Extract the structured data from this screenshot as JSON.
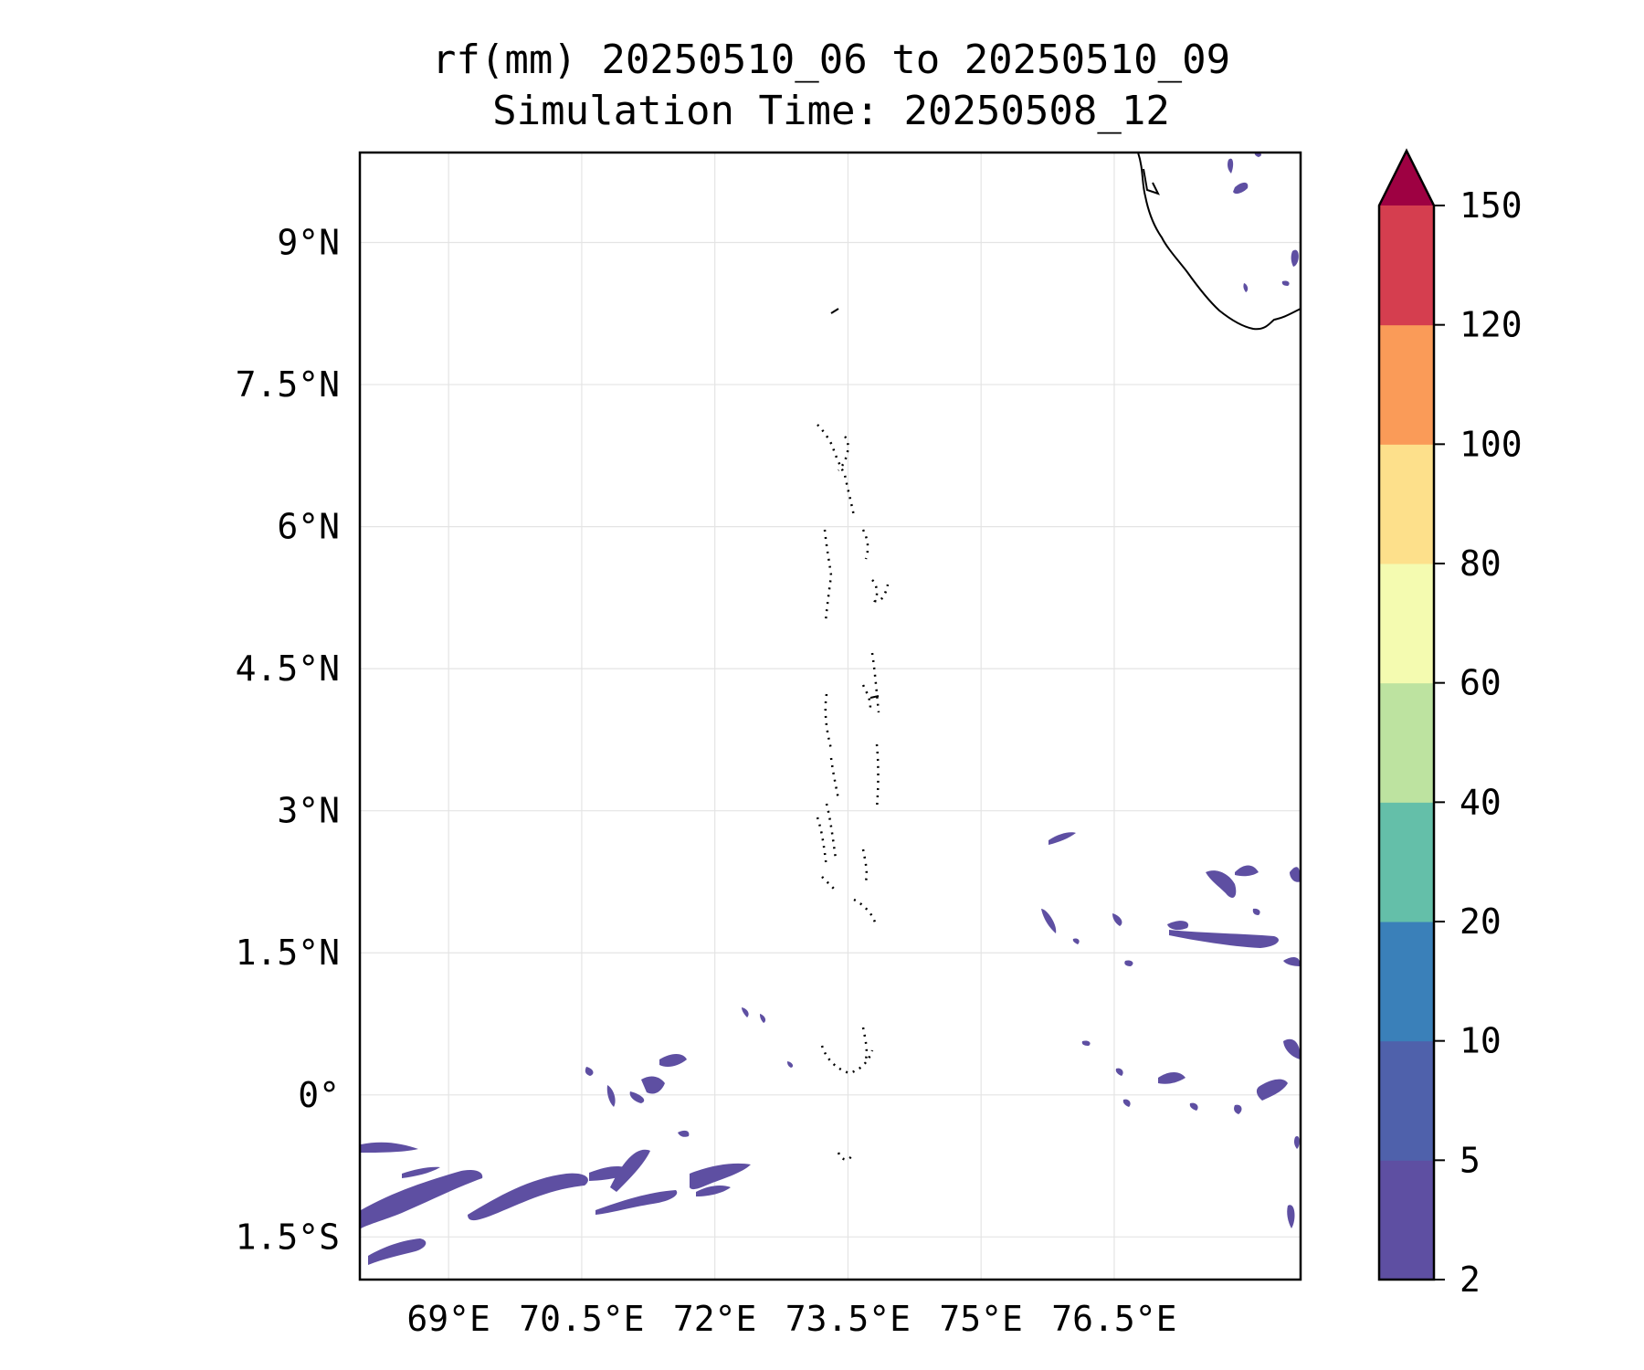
{
  "title": {
    "line1": "rf(mm) 20250510_06 to 20250510_09",
    "line2": "Simulation Time: 20250508_12"
  },
  "map": {
    "lon_range": [
      68,
      78.6
    ],
    "lat_range": [
      -1.95,
      9.95
    ],
    "lon_ticks": [
      {
        "value": 69,
        "label": "69°E"
      },
      {
        "value": 70.5,
        "label": "70.5°E"
      },
      {
        "value": 72,
        "label": "72°E"
      },
      {
        "value": 73.5,
        "label": "73.5°E"
      },
      {
        "value": 75,
        "label": "75°E"
      },
      {
        "value": 76.5,
        "label": "76.5°E"
      }
    ],
    "lat_ticks": [
      {
        "value": 9,
        "label": "9°N"
      },
      {
        "value": 7.5,
        "label": "7.5°N"
      },
      {
        "value": 6,
        "label": "6°N"
      },
      {
        "value": 4.5,
        "label": "4.5°N"
      },
      {
        "value": 3,
        "label": "3°N"
      },
      {
        "value": 1.5,
        "label": "1.5°N"
      },
      {
        "value": 0,
        "label": "0°"
      },
      {
        "value": -1.5,
        "label": "1.5°S"
      }
    ],
    "grid": true,
    "rain_color": "#5e4fa2"
  },
  "colorbar": {
    "levels": [
      2,
      5,
      10,
      20,
      40,
      60,
      80,
      100,
      120,
      150
    ],
    "labels": [
      "2",
      "5",
      "10",
      "20",
      "40",
      "60",
      "80",
      "100",
      "120",
      "150"
    ],
    "colors": [
      "#5e4fa2",
      "#4f61ab",
      "#3a80b9",
      "#64bfa9",
      "#bde3a0",
      "#f4fbb0",
      "#fde08b",
      "#fa9b58",
      "#d53e4f"
    ],
    "extend_color": "#9e0142"
  }
}
